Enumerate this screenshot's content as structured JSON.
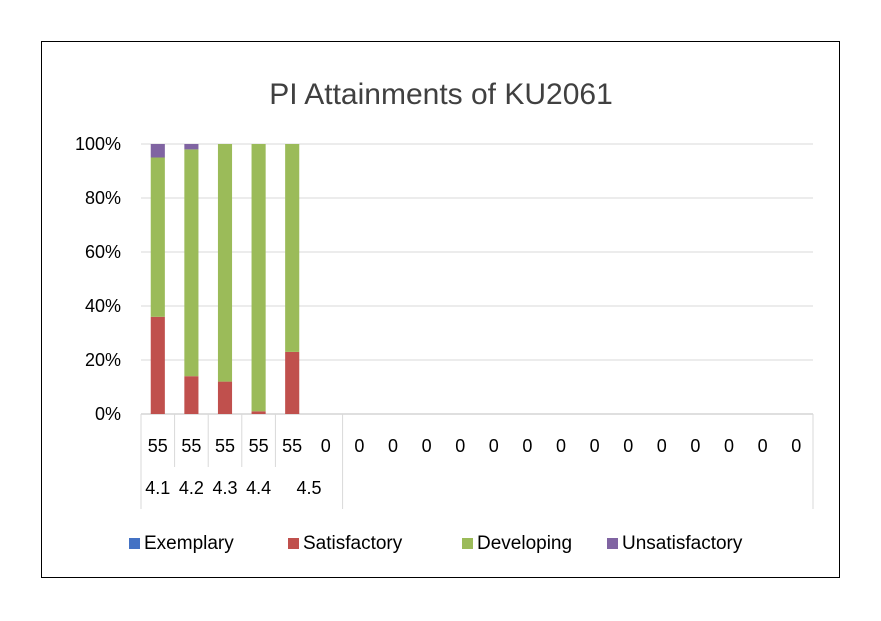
{
  "chart_data": {
    "type": "bar",
    "stacked": "percent",
    "title": "PI Attainments of KU2061",
    "xlabel": "",
    "ylabel": "",
    "ylim": [
      0,
      100
    ],
    "y_ticks": [
      "0%",
      "20%",
      "40%",
      "60%",
      "80%",
      "100%"
    ],
    "grid": true,
    "legend_position": "bottom",
    "categories": [
      "55",
      "55",
      "55",
      "55",
      "55",
      "0",
      "0",
      "0",
      "0",
      "0",
      "0",
      "0",
      "0",
      "0",
      "0",
      "0",
      "0",
      "0",
      "0",
      "0"
    ],
    "groups": [
      {
        "label": "4.1",
        "span": 1
      },
      {
        "label": "4.2",
        "span": 1
      },
      {
        "label": "4.3",
        "span": 1
      },
      {
        "label": "4.4",
        "span": 1
      },
      {
        "label": "4.5",
        "span": 2
      }
    ],
    "series": [
      {
        "name": "Exemplary",
        "color": "#4472C4",
        "values": [
          0,
          0,
          0,
          0,
          0,
          0,
          0,
          0,
          0,
          0,
          0,
          0,
          0,
          0,
          0,
          0,
          0,
          0,
          0,
          0
        ]
      },
      {
        "name": "Satisfactory",
        "color": "#C0504D",
        "values": [
          36,
          14,
          12,
          1,
          23,
          0,
          0,
          0,
          0,
          0,
          0,
          0,
          0,
          0,
          0,
          0,
          0,
          0,
          0,
          0
        ]
      },
      {
        "name": "Developing",
        "color": "#9BBB59",
        "values": [
          59,
          84,
          88,
          99,
          77,
          0,
          0,
          0,
          0,
          0,
          0,
          0,
          0,
          0,
          0,
          0,
          0,
          0,
          0,
          0
        ]
      },
      {
        "name": "Unsatisfactory",
        "color": "#8064A2",
        "values": [
          5,
          2,
          0,
          0,
          0,
          0,
          0,
          0,
          0,
          0,
          0,
          0,
          0,
          0,
          0,
          0,
          0,
          0,
          0,
          0
        ]
      }
    ]
  }
}
